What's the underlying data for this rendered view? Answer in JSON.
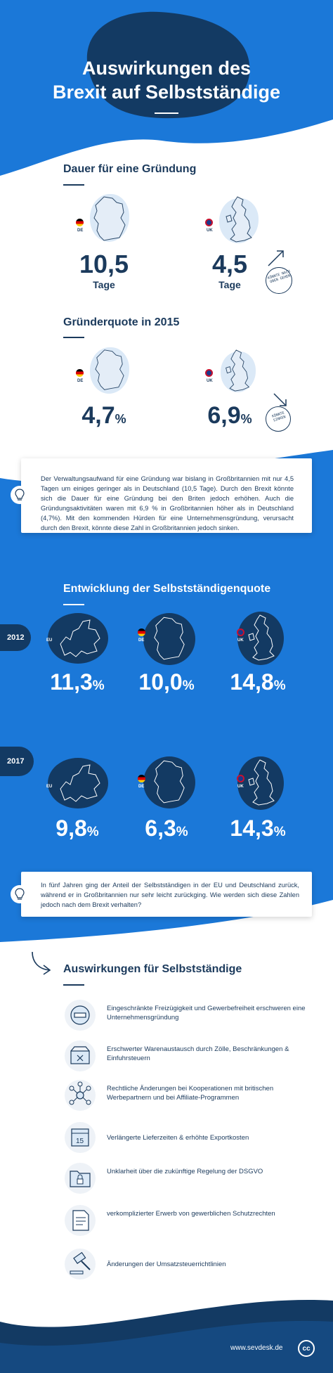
{
  "header": {
    "title_line1": "Auswirkungen des",
    "title_line2": "Brexit auf Selbstständige"
  },
  "founding": {
    "heading": "Dauer für eine Gründung",
    "de": {
      "flag_label": "DE",
      "value": "10,5",
      "unit": "Tage"
    },
    "uk": {
      "flag_label": "UK",
      "value": "4,5",
      "unit": "Tage",
      "note": "KÖNNTE NACH OBEN GEHEN"
    }
  },
  "founder_rate": {
    "heading": "Gründerquote in 2015",
    "de": {
      "flag_label": "DE",
      "value": "4,7",
      "unit": "%"
    },
    "uk": {
      "flag_label": "UK",
      "value": "6,9",
      "unit": "%",
      "note": "KÖNNTE SINKEN"
    }
  },
  "info1": {
    "text": "Der Verwaltungsaufwand für eine Gründung war bislang in Großbritannien mit nur 4,5 Tagen um einiges geringer als in Deutschland (10,5 Tage). Durch den Brexit könnte sich die Dauer für eine Gründung bei den Briten jedoch erhöhen. Auch die Gründungsaktivitäten waren mit 6,9 % in Großbritannien höher als in Deutschland (4,7%). Mit den kommenden Hürden für eine Unternehmensgründung, verursacht durch den Brexit, könnte diese Zahl in Großbritannien jedoch sinken."
  },
  "selfemp": {
    "heading": "Entwicklung der Selbstständigenquote",
    "rows": [
      {
        "year": "2012",
        "eu": "11,3",
        "de": "10,0",
        "uk": "14,8"
      },
      {
        "year": "2017",
        "eu": "9,8",
        "de": "6,3",
        "uk": "14,3"
      }
    ],
    "labels": {
      "eu": "EU",
      "de": "DE",
      "uk": "UK",
      "unit": "%"
    }
  },
  "info2": {
    "text": "In fünf Jahren ging der Anteil der Selbstständigen in der EU und Deutschland zurück, während er in Großbritannien nur sehr leicht zurückging. Wie werden sich diese Zahlen jedoch nach dem Brexit verhalten?"
  },
  "impacts": {
    "heading": "Auswirkungen für Selbstständige",
    "items": [
      {
        "icon": "no-entry-icon",
        "text": "Eingeschränkte Freizügigkeit und Gewerbefreiheit erschweren eine Unternehmensgründung"
      },
      {
        "icon": "box-icon",
        "text": "Erschwerter Warenaustausch durch Zölle, Beschränkungen & Einfuhrsteuern"
      },
      {
        "icon": "network-icon",
        "text": "Rechtliche Änderungen bei Kooperationen mit britischen Werbepartnern und bei Affiliate-Programmen"
      },
      {
        "icon": "calendar-icon",
        "text": "Verlängerte Lieferzeiten & erhöhte Exportkosten"
      },
      {
        "icon": "folder-lock-icon",
        "text": "Unklarheit über die zukünftige Regelung der DSGVO"
      },
      {
        "icon": "document-icon",
        "text": "verkomplizierter Erwerb von gewerblichen Schutzrechten"
      },
      {
        "icon": "gavel-icon",
        "text": "Änderungen der Umsatzsteuerrichtlinien"
      }
    ]
  },
  "footer": {
    "url": "www.sevdesk.de",
    "logo": "cc"
  },
  "colors": {
    "brand_blue": "#1b78d8",
    "navy": "#133a63",
    "text_navy": "#1b3a5c"
  }
}
